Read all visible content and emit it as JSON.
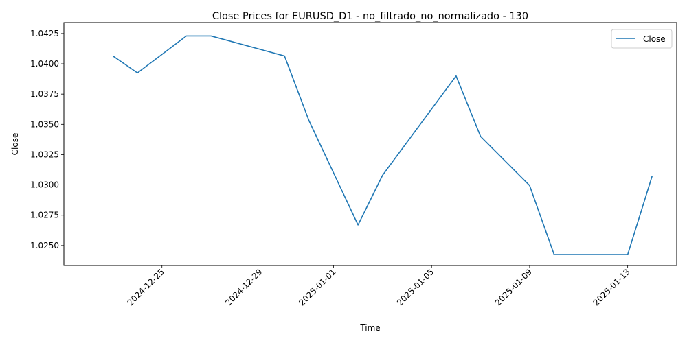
{
  "chart_data": {
    "type": "line",
    "title": "Close Prices for EURUSD_D1 - no_filtrado_no_normalizado - 130",
    "xlabel": "Time",
    "ylabel": "Close",
    "x_ticks": [
      "2024-12-25",
      "2024-12-29",
      "2025-01-01",
      "2025-01-05",
      "2025-01-09",
      "2025-01-13"
    ],
    "y_ticks": [
      "1.0250",
      "1.0275",
      "1.0300",
      "1.0325",
      "1.0350",
      "1.0375",
      "1.0400",
      "1.0425"
    ],
    "xlim": [
      "2024-12-21",
      "2025-01-15"
    ],
    "ylim": [
      1.02335,
      1.0434
    ],
    "legend": {
      "position": "top-right",
      "entries": [
        "Close"
      ]
    },
    "grid": false,
    "series": [
      {
        "name": "Close",
        "color": "#1f77b4",
        "x": [
          "2024-12-23",
          "2024-12-24",
          "2024-12-26",
          "2024-12-27",
          "2024-12-30",
          "2024-12-31",
          "2025-01-02",
          "2025-01-03",
          "2025-01-06",
          "2025-01-07",
          "2025-01-09",
          "2025-01-10",
          "2025-01-13",
          "2025-01-14"
        ],
        "values": [
          1.04065,
          1.03925,
          1.0423,
          1.0423,
          1.04065,
          1.0353,
          1.0267,
          1.0308,
          1.039,
          1.034,
          1.02995,
          1.02425,
          1.02425,
          1.03075
        ]
      }
    ]
  }
}
